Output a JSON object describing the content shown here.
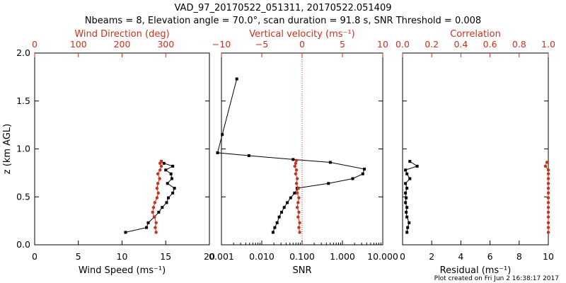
{
  "colors": {
    "primary": "#000000",
    "secondary": "#c8321e",
    "dotted_line": "#c8321e"
  },
  "title": {
    "line1": "VAD_97_20170522_051311, 20170522.051409",
    "line2": "Nbeams = 8, Elevation angle = 70.0°, scan duration = 91.8 s, SNR Threshold = 0.008"
  },
  "footer": "Plot created on Fri Jun  2 16:38:17 2017",
  "chart_data": [
    {
      "type": "line",
      "ylabel": "z (km AGL)",
      "ylim": [
        0,
        2.0
      ],
      "yticks": [
        "0.0",
        "0.5",
        "1.0",
        "1.5",
        "2.0"
      ],
      "bottom_axis": {
        "label": "Wind Speed (ms⁻¹)",
        "range": [
          0,
          20
        ],
        "ticks": [
          "0",
          "5",
          "10",
          "15",
          "20"
        ]
      },
      "top_axis": {
        "label": "Wind Direction (deg)",
        "range": [
          0,
          400
        ],
        "ticks": [
          "0",
          "100",
          "200",
          "300"
        ]
      },
      "series": [
        {
          "axis": "bottom",
          "color": "#000000",
          "marker": "square",
          "x": [
            10.4,
            12.8,
            13.0,
            13.7,
            14.2,
            14.6,
            15.1,
            15.3,
            15.8,
            16.0,
            15.2,
            15.7,
            15.6,
            15.0,
            15.8,
            14.8,
            14.5
          ],
          "y": [
            0.13,
            0.18,
            0.23,
            0.29,
            0.34,
            0.39,
            0.44,
            0.49,
            0.54,
            0.59,
            0.64,
            0.69,
            0.74,
            0.78,
            0.82,
            0.85,
            0.87
          ]
        },
        {
          "axis": "top",
          "color": "#c8321e",
          "marker": "circle",
          "x": [
            278,
            276,
            278,
            274,
            270,
            272,
            275,
            280,
            283,
            280,
            282,
            286,
            282,
            287,
            290,
            287,
            290
          ],
          "y": [
            0.13,
            0.18,
            0.23,
            0.29,
            0.34,
            0.39,
            0.44,
            0.49,
            0.54,
            0.59,
            0.64,
            0.69,
            0.74,
            0.78,
            0.82,
            0.85,
            0.87
          ]
        }
      ]
    },
    {
      "type": "line",
      "ylim": [
        0,
        2.0
      ],
      "bottom_axis": {
        "label": "SNR",
        "scale": "log",
        "range": [
          0.001,
          10
        ],
        "ticks": [
          "0.001",
          "0.010",
          "0.100",
          "1.000",
          "10.000"
        ]
      },
      "top_axis": {
        "label": "Vertical velocity (ms⁻¹)",
        "range": [
          -10,
          10
        ],
        "ticks": [
          "−10",
          "−5",
          "0",
          "5",
          "10"
        ]
      },
      "reference_line": {
        "axis": "top",
        "value": 0,
        "style": "dotted",
        "color": "#c8321e"
      },
      "series": [
        {
          "axis": "bottom",
          "color": "#000000",
          "marker": "square",
          "x": [
            0.019,
            0.021,
            0.024,
            0.027,
            0.031,
            0.036,
            0.043,
            0.052,
            0.065,
            0.08,
            0.075,
            0.45,
            1.8,
            3.2,
            3.5,
            0.5,
            0.06,
            0.0048,
            0.0008,
            0.00105,
            0.0024
          ],
          "y": [
            0.13,
            0.18,
            0.23,
            0.29,
            0.34,
            0.39,
            0.44,
            0.49,
            0.54,
            0.59,
            0.59,
            0.64,
            0.69,
            0.74,
            0.79,
            0.86,
            0.89,
            0.93,
            0.96,
            1.15,
            1.73
          ]
        },
        {
          "axis": "top",
          "color": "#c8321e",
          "marker": "circle",
          "x": [
            -0.3,
            -0.4,
            -0.3,
            -0.5,
            -0.4,
            -0.6,
            -0.5,
            -0.4,
            -0.6,
            -0.5,
            -0.7,
            -0.6,
            -0.8,
            -0.7,
            -0.9,
            -0.8,
            -0.7
          ],
          "y": [
            0.13,
            0.18,
            0.23,
            0.29,
            0.34,
            0.39,
            0.44,
            0.49,
            0.54,
            0.59,
            0.64,
            0.69,
            0.74,
            0.78,
            0.82,
            0.85,
            0.88
          ]
        }
      ]
    },
    {
      "type": "line",
      "ylim": [
        0,
        2.0
      ],
      "bottom_axis": {
        "label": "Residual (ms⁻¹)",
        "range": [
          0,
          10
        ],
        "ticks": [
          "0",
          "2",
          "4",
          "6",
          "8",
          "10"
        ]
      },
      "top_axis": {
        "label": "Correlation",
        "range": [
          0,
          1.0
        ],
        "ticks": [
          "0.0",
          "0.2",
          "0.4",
          "0.6",
          "0.8",
          "1.0"
        ]
      },
      "series": [
        {
          "axis": "bottom",
          "color": "#000000",
          "marker": "square",
          "x": [
            0.3,
            0.35,
            0.45,
            0.3,
            0.25,
            0.3,
            0.2,
            0.25,
            0.2,
            0.3,
            0.2,
            0.5,
            0.3,
            0.2,
            1.0,
            0.5
          ],
          "y": [
            0.13,
            0.18,
            0.23,
            0.29,
            0.34,
            0.39,
            0.44,
            0.49,
            0.54,
            0.59,
            0.64,
            0.69,
            0.74,
            0.78,
            0.82,
            0.87
          ]
        },
        {
          "axis": "top",
          "color": "#c8321e",
          "marker": "circle",
          "x": [
            1.0,
            1.0,
            1.0,
            1.0,
            1.0,
            1.0,
            1.0,
            1.0,
            1.0,
            1.0,
            1.0,
            1.0,
            1.0,
            1.0,
            0.98,
            0.99
          ],
          "y": [
            0.13,
            0.18,
            0.23,
            0.29,
            0.34,
            0.39,
            0.44,
            0.49,
            0.54,
            0.59,
            0.64,
            0.69,
            0.74,
            0.78,
            0.82,
            0.86
          ]
        }
      ]
    }
  ]
}
